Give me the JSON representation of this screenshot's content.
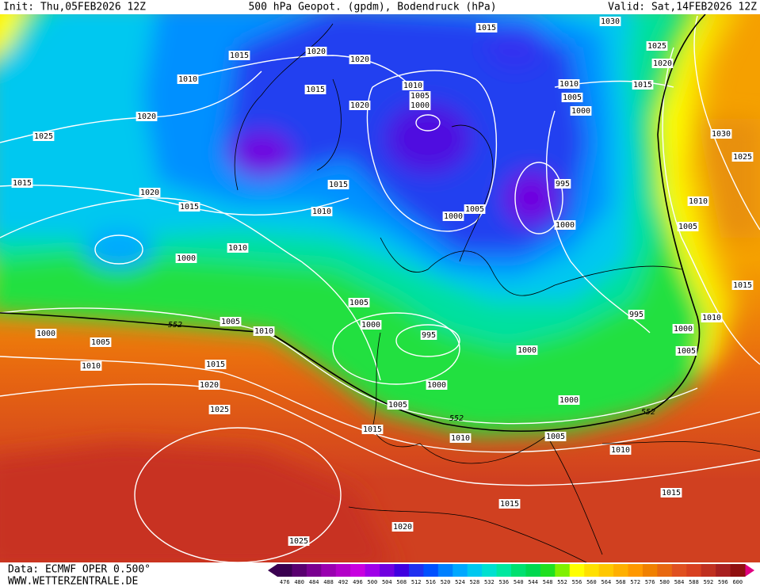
{
  "header": {
    "init": "Init: Thu,05FEB2026 12Z",
    "title": "500 hPa Geopot. (gpdm), Bodendruck (hPa)",
    "valid": "Valid: Sat,14FEB2026 12Z"
  },
  "footer": {
    "source": "Data: ECMWF OPER 0.500°",
    "site": "WWW.WETTERZENTRALE.DE"
  },
  "color_scale": {
    "values": [
      476,
      480,
      484,
      488,
      492,
      496,
      500,
      504,
      508,
      512,
      516,
      520,
      524,
      528,
      532,
      536,
      540,
      544,
      548,
      552,
      556,
      560,
      564,
      568,
      572,
      576,
      580,
      584,
      588,
      592,
      596,
      600
    ],
    "colors": [
      "#3a0050",
      "#5a0070",
      "#7a0090",
      "#9a00b0",
      "#b400c8",
      "#c800e0",
      "#a000e8",
      "#7000e0",
      "#4000e0",
      "#2030f0",
      "#0050ff",
      "#0080ff",
      "#00a8ff",
      "#00c8f0",
      "#00e0d0",
      "#00e8a0",
      "#00e070",
      "#00d850",
      "#20e020",
      "#80f000",
      "#ffff00",
      "#ffe000",
      "#ffc800",
      "#ffb000",
      "#ff9800",
      "#f08000",
      "#e86810",
      "#e05020",
      "#d84020",
      "#c03020",
      "#a82020",
      "#901010"
    ]
  },
  "isobar_labels": [
    1015,
    1020,
    1020,
    1015,
    1030,
    1025,
    1020,
    1010,
    1010,
    1005,
    1000,
    1015,
    1020,
    1010,
    1015,
    1005,
    1000,
    1020,
    1025,
    1030,
    1025,
    1015,
    1020,
    1015,
    1015,
    1010,
    995,
    1005,
    1000,
    1010,
    1000,
    1005,
    1010,
    1000,
    1015,
    1005,
    1005,
    1010,
    1000,
    1005,
    1000,
    995,
    995,
    1010,
    1000,
    1000,
    1005,
    1010,
    1015,
    1020,
    1000,
    1000,
    1005,
    1025,
    1015,
    1010,
    1005,
    1010,
    1015,
    1015,
    1020,
    1025
  ],
  "geopotential_labels": [
    552,
    552,
    552
  ]
}
